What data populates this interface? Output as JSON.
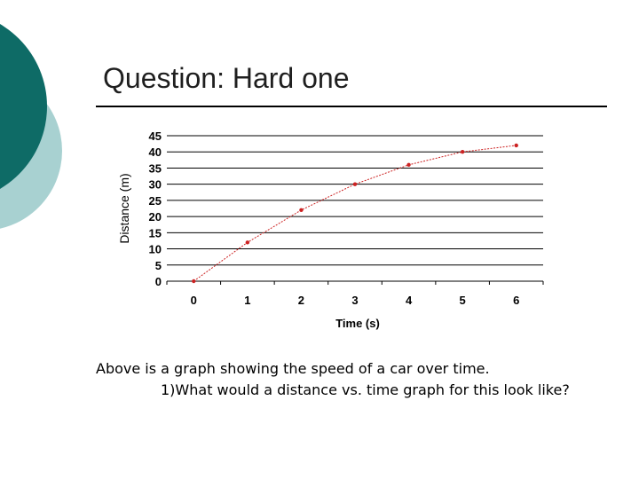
{
  "slide": {
    "title": "Question: Hard one",
    "caption_line1": "Above is a graph showing the speed of a car over time.",
    "caption_line2": "1)What would a distance vs. time graph for this look like?",
    "colors": {
      "circle_dark": "#0e6b66",
      "circle_light": "#a8d1d1",
      "series": "#cc2222"
    }
  },
  "chart_data": {
    "type": "line",
    "xlabel": "Time (s)",
    "ylabel": "Distance (m)",
    "x": [
      0,
      1,
      2,
      3,
      4,
      5,
      6
    ],
    "y": [
      0,
      12,
      22,
      30,
      36,
      40,
      42
    ],
    "xticks": [
      "0",
      "1",
      "2",
      "3",
      "4",
      "5",
      "6"
    ],
    "yticks": [
      "0",
      "5",
      "10",
      "15",
      "20",
      "25",
      "30",
      "35",
      "40",
      "45"
    ],
    "ylim": [
      0,
      45
    ],
    "grid": "horizontal",
    "legend": "none"
  }
}
